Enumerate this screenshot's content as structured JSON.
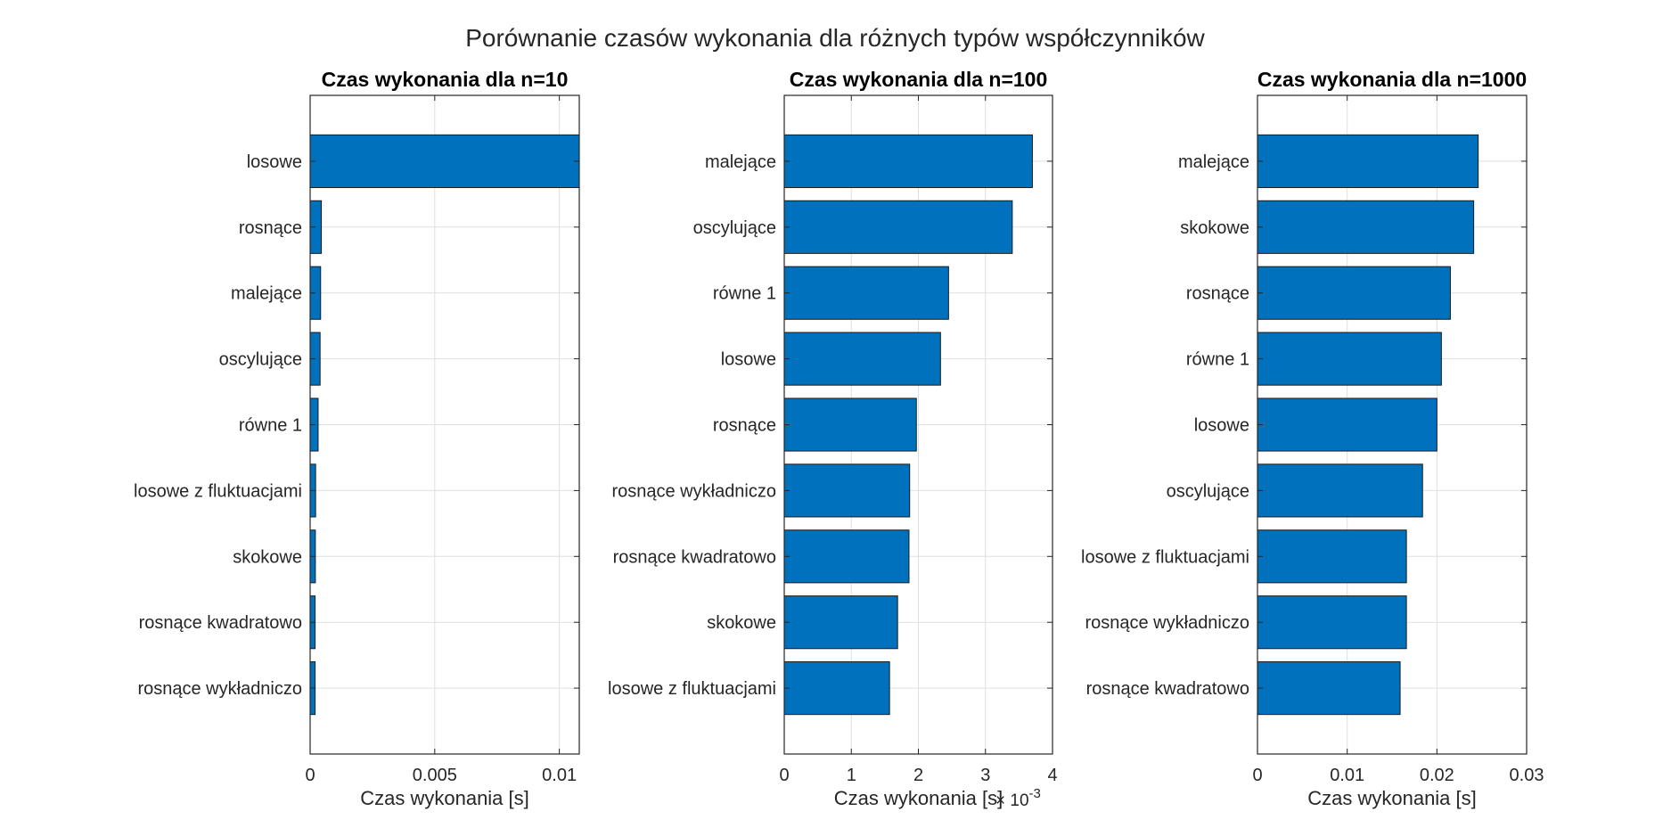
{
  "figure": {
    "title": "Porównanie czasów wykonania dla różnych typów współczynników",
    "bar_color": "#0072BD"
  },
  "chart_data": [
    {
      "type": "bar",
      "orientation": "horizontal",
      "title": "Czas wykonania dla n=10",
      "xlabel": "Czas wykonania [s]",
      "ylabel": "",
      "categories": [
        "losowe",
        "rosnące",
        "malejące",
        "oscylujące",
        "równe 1",
        "losowe z fluktuacjami",
        "skokowe",
        "rosnące kwadratowo",
        "rosnące wykładniczo"
      ],
      "values": [
        0.0108,
        0.00045,
        0.00042,
        0.0004,
        0.00032,
        0.00022,
        0.00021,
        0.0002,
        0.0002
      ],
      "xlim": [
        0,
        0.0108
      ],
      "xticks": [
        0,
        0.005,
        0.01
      ],
      "xtick_labels": [
        "0",
        "0.005",
        "0.01"
      ],
      "exponent_label": "",
      "grid": true
    },
    {
      "type": "bar",
      "orientation": "horizontal",
      "title": "Czas wykonania dla n=100",
      "xlabel": "Czas wykonania [s]",
      "ylabel": "",
      "categories": [
        "malejące",
        "oscylujące",
        "równe 1",
        "losowe",
        "rosnące",
        "rosnące wykładniczo",
        "rosnące kwadratowo",
        "skokowe",
        "losowe z fluktuacjami"
      ],
      "values": [
        0.0037,
        0.0034,
        0.00245,
        0.00233,
        0.00197,
        0.00187,
        0.00186,
        0.00169,
        0.00157
      ],
      "xlim": [
        0,
        0.004
      ],
      "xticks": [
        0,
        0.001,
        0.002,
        0.003,
        0.004
      ],
      "xtick_labels": [
        "0",
        "1",
        "2",
        "3",
        "4"
      ],
      "exponent_label": "× 10",
      "exponent_power": "-3",
      "grid": true
    },
    {
      "type": "bar",
      "orientation": "horizontal",
      "title": "Czas wykonania dla n=1000",
      "xlabel": "Czas wykonania [s]",
      "ylabel": "",
      "categories": [
        "malejące",
        "skokowe",
        "rosnące",
        "równe 1",
        "losowe",
        "oscylujące",
        "losowe z fluktuacjami",
        "rosnące wykładniczo",
        "rosnące kwadratowo"
      ],
      "values": [
        0.0246,
        0.0241,
        0.0215,
        0.0205,
        0.02,
        0.0184,
        0.0166,
        0.0166,
        0.0159
      ],
      "xlim": [
        0,
        0.03
      ],
      "xticks": [
        0,
        0.01,
        0.02,
        0.03
      ],
      "xtick_labels": [
        "0",
        "0.01",
        "0.02",
        "0.03"
      ],
      "exponent_label": "",
      "grid": true
    }
  ]
}
